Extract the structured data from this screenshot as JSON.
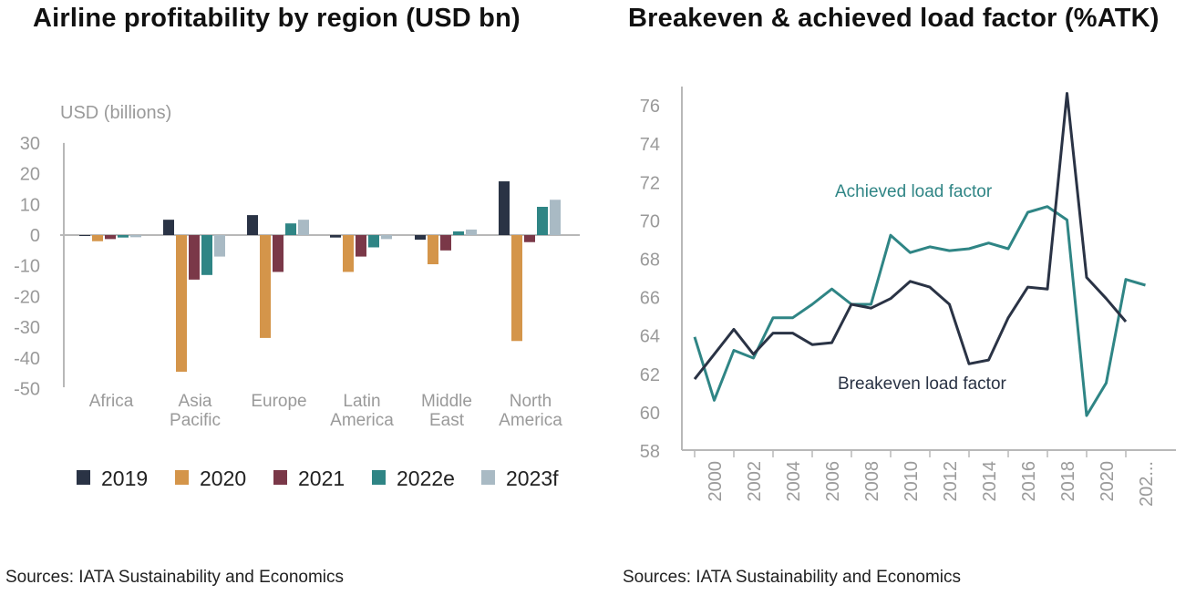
{
  "titles": {
    "left": "Airline profitability by region (USD bn)",
    "right": "Breakeven & achieved load factor (%ATK)"
  },
  "sources": {
    "left": "Sources: IATA Sustainability and Economics",
    "right": "Sources: IATA Sustainability and Economics"
  },
  "chart_data": [
    {
      "type": "bar",
      "title": "Airline profitability by region (USD bn)",
      "ylabel": "USD (billions)",
      "xlabel": "",
      "ylim": [
        -50,
        30
      ],
      "yticks": [
        30,
        20,
        10,
        0,
        -10,
        -20,
        -30,
        -40,
        -50
      ],
      "categories": [
        [
          "Africa"
        ],
        [
          "Asia",
          "Pacific"
        ],
        [
          "Europe"
        ],
        [
          "Latin",
          "America"
        ],
        [
          "Middle",
          "East"
        ],
        [
          "North",
          "America"
        ]
      ],
      "series": [
        {
          "name": "2019",
          "color": "#2a3345",
          "values": [
            -0.2,
            5.0,
            6.5,
            -0.8,
            -1.5,
            17.5
          ]
        },
        {
          "name": "2020",
          "color": "#d4954a",
          "values": [
            -2.0,
            -44.5,
            -33.5,
            -12.0,
            -9.5,
            -34.5
          ]
        },
        {
          "name": "2021",
          "color": "#7a3848",
          "values": [
            -1.3,
            -14.5,
            -12.0,
            -7.0,
            -5.0,
            -2.3
          ]
        },
        {
          "name": "2022e",
          "color": "#2f8585",
          "values": [
            -0.8,
            -13.0,
            3.8,
            -4.0,
            1.2,
            9.2
          ]
        },
        {
          "name": "2023f",
          "color": "#a9bac4",
          "values": [
            -0.7,
            -7.0,
            5.0,
            -1.3,
            1.8,
            11.5
          ]
        }
      ],
      "legend": "bottom"
    },
    {
      "type": "line",
      "title": "Breakeven & achieved load factor (%ATK)",
      "xlabel": "",
      "ylabel": "",
      "ylim": [
        58,
        76
      ],
      "yticks": [
        76,
        74,
        72,
        70,
        68,
        66,
        64,
        62,
        60,
        58
      ],
      "x": [
        1999,
        2000,
        2001,
        2002,
        2003,
        2004,
        2005,
        2006,
        2007,
        2008,
        2009,
        2010,
        2011,
        2012,
        2013,
        2014,
        2015,
        2016,
        2017,
        2018,
        2019,
        2020,
        2021,
        2022,
        2023
      ],
      "xticks": [
        "2000",
        "2002",
        "2004",
        "2006",
        "2008",
        "2010",
        "2012",
        "2014",
        "2016",
        "2018",
        "2020",
        "202..."
      ],
      "series": [
        {
          "name": "Achieved load factor",
          "color": "#2f8585",
          "values": [
            63.9,
            60.6,
            63.2,
            62.8,
            64.9,
            64.9,
            65.6,
            66.4,
            65.6,
            65.6,
            69.2,
            68.3,
            68.6,
            68.4,
            68.5,
            68.8,
            68.5,
            70.4,
            70.7,
            70.0,
            59.8,
            61.5,
            66.9,
            66.6,
            null
          ]
        },
        {
          "name": "Breakeven load factor",
          "color": "#2a3345",
          "values": [
            61.7,
            63.0,
            64.3,
            63.0,
            64.1,
            64.1,
            63.5,
            63.6,
            65.6,
            65.4,
            65.9,
            66.8,
            66.5,
            65.6,
            62.5,
            62.7,
            64.9,
            66.5,
            66.4,
            76.6,
            67.0,
            65.9,
            64.7,
            null,
            null
          ]
        }
      ],
      "annotations": [
        {
          "text": "Achieved load factor",
          "series": "Achieved load factor"
        },
        {
          "text": "Breakeven load factor",
          "series": "Breakeven load factor"
        }
      ]
    }
  ]
}
